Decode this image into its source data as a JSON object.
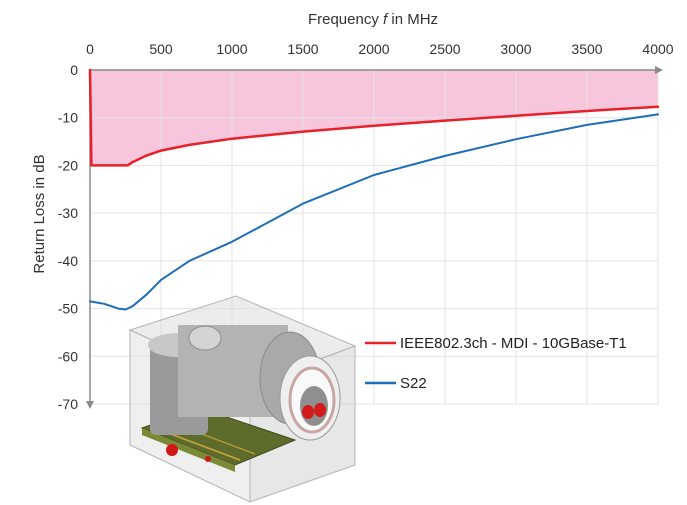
{
  "chart_data": {
    "type": "line",
    "title": "",
    "xlabel": {
      "prefix": "Frequency ",
      "symbol": "f",
      "suffix": " in MHz"
    },
    "ylabel": "Return Loss in dB",
    "x_axis_position": "top",
    "xlim": [
      0,
      4000
    ],
    "ylim": [
      -70,
      0
    ],
    "xticks": [
      "0",
      "500",
      "1000",
      "1500",
      "2000",
      "2500",
      "3000",
      "3500",
      "4000"
    ],
    "yticks": [
      "0",
      "-10",
      "-20",
      "-30",
      "-40",
      "-50",
      "-60",
      "-70"
    ],
    "grid": true,
    "legend_position": "lower-right",
    "limit_region_color": "#f7c5dc",
    "series": [
      {
        "name": "IEEE802.3ch - MDI - 10GBase-T1",
        "color": "#e8202a",
        "x": [
          0,
          10,
          100,
          200,
          265,
          300,
          400,
          500,
          700,
          1000,
          1500,
          2000,
          2500,
          3000,
          3500,
          4000
        ],
        "y": [
          0,
          -20,
          -20,
          -20,
          -20,
          -19.3,
          -17.9,
          -16.9,
          -15.7,
          -14.4,
          -12.9,
          -11.7,
          -10.6,
          -9.6,
          -8.6,
          -7.7
        ]
      },
      {
        "name": "S22",
        "color": "#1f6cb8",
        "x": [
          0,
          100,
          200,
          250,
          300,
          400,
          500,
          700,
          1000,
          1500,
          2000,
          2500,
          3000,
          3500,
          4000
        ],
        "y": [
          -48.5,
          -49,
          -50,
          -50.2,
          -49.5,
          -47,
          -44,
          -40,
          -36,
          -28,
          -22,
          -18,
          -14.5,
          -11.5,
          -9.3
        ]
      }
    ],
    "inset_image": "connector-3d-render"
  }
}
